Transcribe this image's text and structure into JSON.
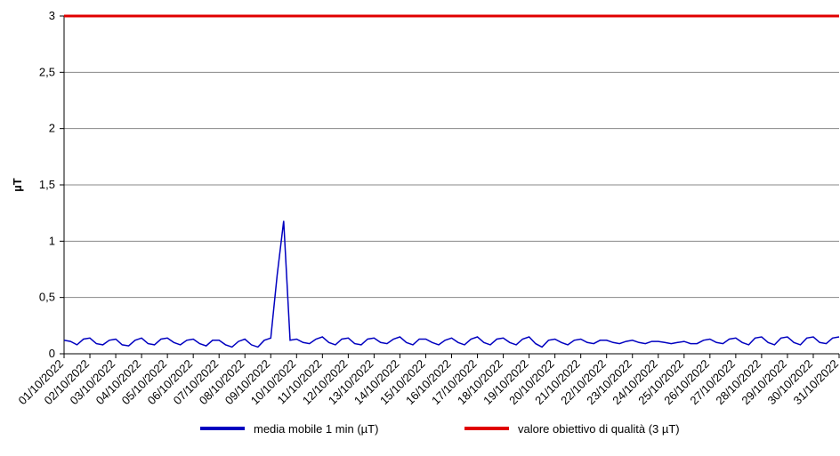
{
  "chart_data": {
    "type": "line",
    "y_label": "µT",
    "categories": [
      "01/10/2022",
      null,
      null,
      null,
      "02/10/2022",
      null,
      null,
      null,
      "03/10/2022",
      null,
      null,
      null,
      "04/10/2022",
      null,
      null,
      null,
      "05/10/2022",
      null,
      null,
      null,
      "06/10/2022",
      null,
      null,
      null,
      "07/10/2022",
      null,
      null,
      null,
      "08/10/2022",
      null,
      null,
      null,
      "09/10/2022",
      null,
      null,
      null,
      "10/10/2022",
      null,
      null,
      null,
      "11/10/2022",
      null,
      null,
      null,
      "12/10/2022",
      null,
      null,
      null,
      "13/10/2022",
      null,
      null,
      null,
      "14/10/2022",
      null,
      null,
      null,
      "15/10/2022",
      null,
      null,
      null,
      "16/10/2022",
      null,
      null,
      null,
      "17/10/2022",
      null,
      null,
      null,
      "18/10/2022",
      null,
      null,
      null,
      "19/10/2022",
      null,
      null,
      null,
      "20/10/2022",
      null,
      null,
      null,
      "21/10/2022",
      null,
      null,
      null,
      "22/10/2022",
      null,
      null,
      null,
      "23/10/2022",
      null,
      null,
      null,
      "24/10/2022",
      null,
      null,
      null,
      "25/10/2022",
      null,
      null,
      null,
      "26/10/2022",
      null,
      null,
      null,
      "27/10/2022",
      null,
      null,
      null,
      "28/10/2022",
      null,
      null,
      null,
      "29/10/2022",
      null,
      null,
      null,
      "30/10/2022",
      null,
      null,
      null,
      "31/10/2022"
    ],
    "series": [
      {
        "name": "media mobile 1 min (µT)",
        "color": "#0000c0",
        "values": [
          0.12,
          0.11,
          0.08,
          0.13,
          0.14,
          0.09,
          0.08,
          0.12,
          0.13,
          0.08,
          0.07,
          0.12,
          0.14,
          0.09,
          0.08,
          0.13,
          0.14,
          0.1,
          0.08,
          0.12,
          0.13,
          0.09,
          0.07,
          0.12,
          0.12,
          0.08,
          0.06,
          0.11,
          0.13,
          0.08,
          0.06,
          0.12,
          0.14,
          0.7,
          1.18,
          0.12,
          0.13,
          0.1,
          0.09,
          0.13,
          0.15,
          0.1,
          0.08,
          0.13,
          0.14,
          0.09,
          0.08,
          0.13,
          0.14,
          0.1,
          0.09,
          0.13,
          0.15,
          0.1,
          0.08,
          0.13,
          0.13,
          0.1,
          0.08,
          0.12,
          0.14,
          0.1,
          0.08,
          0.13,
          0.15,
          0.1,
          0.08,
          0.13,
          0.14,
          0.1,
          0.08,
          0.13,
          0.15,
          0.09,
          0.06,
          0.12,
          0.13,
          0.1,
          0.08,
          0.12,
          0.13,
          0.1,
          0.09,
          0.12,
          0.12,
          0.1,
          0.09,
          0.11,
          0.12,
          0.1,
          0.09,
          0.11,
          0.11,
          0.1,
          0.09,
          0.1,
          0.11,
          0.09,
          0.09,
          0.12,
          0.13,
          0.1,
          0.09,
          0.13,
          0.14,
          0.1,
          0.08,
          0.14,
          0.15,
          0.1,
          0.08,
          0.14,
          0.15,
          0.1,
          0.08,
          0.14,
          0.15,
          0.1,
          0.09,
          0.14,
          0.15
        ]
      }
    ],
    "threshold": {
      "name": "valore obiettivo di qualità (3 µT)",
      "color": "#e00000",
      "value": 3
    },
    "ylim": [
      0,
      3
    ],
    "yticks": [
      0,
      {
        "value": 0.5,
        "label": "0,5"
      },
      1,
      {
        "value": 1.5,
        "label": "1,5"
      },
      2,
      {
        "value": 2.5,
        "label": "2,5"
      },
      3
    ],
    "grid": true
  }
}
